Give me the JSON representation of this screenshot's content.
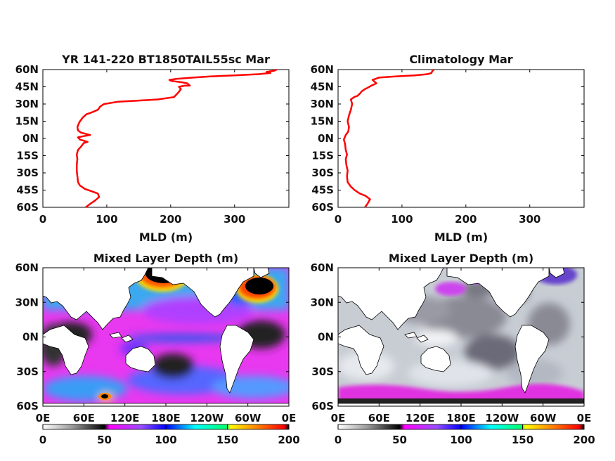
{
  "chart_data": [
    {
      "type": "line",
      "title": "YR 141-220 BT1850TAIL55sc Mar",
      "xlabel": "MLD (m)",
      "ylabel": "",
      "xlim": [
        0,
        385
      ],
      "ylim": [
        -60,
        60
      ],
      "xticks": [
        "0",
        "100",
        "200",
        "300"
      ],
      "yticks": [
        "60N",
        "45N",
        "30N",
        "15N",
        "0N",
        "15S",
        "30S",
        "45S",
        "60S"
      ],
      "grid": false,
      "line_color": "#ff0000",
      "series": [
        {
          "points": [
            [
              67,
              -60
            ],
            [
              74,
              -57
            ],
            [
              82,
              -54
            ],
            [
              88,
              -51
            ],
            [
              86,
              -48
            ],
            [
              76,
              -46
            ],
            [
              66,
              -44
            ],
            [
              58,
              -41
            ],
            [
              55,
              -38
            ],
            [
              54,
              -33
            ],
            [
              53,
              -28
            ],
            [
              53,
              -23
            ],
            [
              54,
              -18
            ],
            [
              53,
              -14
            ],
            [
              55,
              -10
            ],
            [
              60,
              -7
            ],
            [
              64,
              -4
            ],
            [
              70,
              -3
            ],
            [
              58,
              -1
            ],
            [
              55,
              1
            ],
            [
              64,
              2
            ],
            [
              74,
              3
            ],
            [
              60,
              5
            ],
            [
              55,
              7
            ],
            [
              54,
              10
            ],
            [
              57,
              14
            ],
            [
              62,
              18
            ],
            [
              68,
              21
            ],
            [
              78,
              23
            ],
            [
              86,
              25
            ],
            [
              90,
              28
            ],
            [
              96,
              30
            ],
            [
              118,
              32
            ],
            [
              150,
              33
            ],
            [
              180,
              34
            ],
            [
              205,
              36
            ],
            [
              212,
              40
            ],
            [
              216,
              43
            ],
            [
              213,
              45
            ],
            [
              222,
              46
            ],
            [
              230,
              46
            ],
            [
              226,
              48
            ],
            [
              217,
              49
            ],
            [
              202,
              50
            ],
            [
              198,
              51
            ],
            [
              210,
              52
            ],
            [
              235,
              53
            ],
            [
              262,
              54
            ],
            [
              300,
              55
            ],
            [
              338,
              56
            ],
            [
              356,
              57
            ],
            [
              350,
              58
            ],
            [
              362,
              59
            ],
            [
              366,
              60
            ]
          ]
        }
      ]
    },
    {
      "type": "line",
      "title": "Climatology Mar",
      "xlabel": "MLD (m)",
      "ylabel": "",
      "xlim": [
        0,
        385
      ],
      "ylim": [
        -60,
        60
      ],
      "xticks": [
        "0",
        "100",
        "200",
        "300"
      ],
      "yticks": [
        "60N",
        "45N",
        "30N",
        "15N",
        "0N",
        "15S",
        "30S",
        "45S",
        "60S"
      ],
      "grid": false,
      "line_color": "#ff0000",
      "series": [
        {
          "points": [
            [
              42,
              -60
            ],
            [
              46,
              -57
            ],
            [
              50,
              -53
            ],
            [
              43,
              -50
            ],
            [
              34,
              -48
            ],
            [
              26,
              -45
            ],
            [
              20,
              -42
            ],
            [
              15,
              -38
            ],
            [
              14,
              -33
            ],
            [
              15,
              -28
            ],
            [
              13,
              -23
            ],
            [
              12,
              -18
            ],
            [
              14,
              -14
            ],
            [
              12,
              -10
            ],
            [
              11,
              -5
            ],
            [
              9,
              -1
            ],
            [
              12,
              3
            ],
            [
              16,
              6
            ],
            [
              17,
              10
            ],
            [
              15,
              15
            ],
            [
              17,
              20
            ],
            [
              20,
              25
            ],
            [
              22,
              30
            ],
            [
              20,
              34
            ],
            [
              25,
              36
            ],
            [
              30,
              37
            ],
            [
              34,
              39
            ],
            [
              37,
              41
            ],
            [
              42,
              43
            ],
            [
              46,
              44
            ],
            [
              52,
              46
            ],
            [
              60,
              48
            ],
            [
              56,
              50
            ],
            [
              54,
              51
            ],
            [
              64,
              53
            ],
            [
              90,
              54
            ],
            [
              120,
              55
            ],
            [
              140,
              56
            ],
            [
              146,
              57
            ],
            [
              148,
              59
            ],
            [
              150,
              60
            ]
          ]
        }
      ]
    },
    {
      "type": "heatmap",
      "title": "Mixed Layer Depth (m)",
      "xticks": [
        "0E",
        "60E",
        "120E",
        "180E",
        "120W",
        "60W",
        "0E"
      ],
      "yticks": [
        "60N",
        "30N",
        "0N",
        "30S",
        "60S"
      ],
      "colorbar": {
        "ticks": [
          "0",
          "50",
          "100",
          "150",
          "200"
        ],
        "range": [
          0,
          200
        ],
        "colors": [
          "#ffffff",
          "#999999",
          "#000000",
          "#ff00ff",
          "#8a2be2",
          "#0000ff",
          "#00ffff",
          "#00ff00",
          "#ffff00",
          "#ff8800",
          "#ff0000",
          "#000000"
        ]
      }
    },
    {
      "type": "heatmap",
      "title": "Mixed Layer Depth (m)",
      "xticks": [
        "0E",
        "60E",
        "120E",
        "180E",
        "120W",
        "60W",
        "0E"
      ],
      "yticks": [
        "60N",
        "30N",
        "0N",
        "30S",
        "60S"
      ],
      "colorbar": {
        "ticks": [
          "0",
          "50",
          "100",
          "150",
          "200"
        ],
        "range": [
          0,
          200
        ],
        "colors": [
          "#ffffff",
          "#999999",
          "#000000",
          "#ff00ff",
          "#8a2be2",
          "#0000ff",
          "#00ffff",
          "#00ff00",
          "#ffff00",
          "#ff8800",
          "#ff0000",
          "#000000"
        ]
      }
    }
  ]
}
